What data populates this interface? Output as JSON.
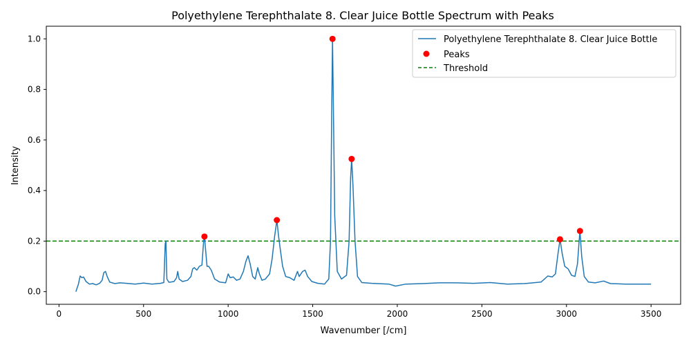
{
  "chart_data": {
    "type": "line",
    "title": "Polyethylene Terephthalate 8. Clear Juice Bottle Spectrum with Peaks",
    "xlabel": "Wavenumber [/cm]",
    "ylabel": "Intensity",
    "xlim": [
      -75,
      3675
    ],
    "ylim": [
      -0.05,
      1.05
    ],
    "xticks": [
      0,
      500,
      1000,
      1500,
      2000,
      2500,
      3000,
      3500
    ],
    "yticks": [
      0.0,
      0.2,
      0.4,
      0.6,
      0.8,
      1.0
    ],
    "xtick_labels": [
      "0",
      "500",
      "1000",
      "1500",
      "2000",
      "2500",
      "3000",
      "3500"
    ],
    "ytick_labels": [
      "0.0",
      "0.2",
      "0.4",
      "0.6",
      "0.8",
      "1.0"
    ],
    "grid": false,
    "legend_position": "top-right",
    "series": [
      {
        "name": "Polyethylene Terephthalate 8. Clear Juice Bottle",
        "color": "#1f77b4",
        "style": "solid",
        "points": [
          [
            100,
            0.0
          ],
          [
            115,
            0.03
          ],
          [
            125,
            0.062
          ],
          [
            135,
            0.055
          ],
          [
            145,
            0.058
          ],
          [
            160,
            0.04
          ],
          [
            180,
            0.03
          ],
          [
            200,
            0.032
          ],
          [
            220,
            0.027
          ],
          [
            240,
            0.033
          ],
          [
            255,
            0.045
          ],
          [
            265,
            0.075
          ],
          [
            275,
            0.08
          ],
          [
            285,
            0.06
          ],
          [
            300,
            0.038
          ],
          [
            330,
            0.032
          ],
          [
            360,
            0.035
          ],
          [
            400,
            0.033
          ],
          [
            450,
            0.03
          ],
          [
            500,
            0.034
          ],
          [
            550,
            0.03
          ],
          [
            600,
            0.033
          ],
          [
            620,
            0.036
          ],
          [
            628,
            0.19
          ],
          [
            632,
            0.2
          ],
          [
            638,
            0.05
          ],
          [
            650,
            0.037
          ],
          [
            680,
            0.04
          ],
          [
            695,
            0.055
          ],
          [
            702,
            0.08
          ],
          [
            710,
            0.05
          ],
          [
            730,
            0.04
          ],
          [
            760,
            0.045
          ],
          [
            780,
            0.06
          ],
          [
            790,
            0.09
          ],
          [
            800,
            0.095
          ],
          [
            815,
            0.085
          ],
          [
            830,
            0.1
          ],
          [
            845,
            0.105
          ],
          [
            855,
            0.2
          ],
          [
            860,
            0.218
          ],
          [
            866,
            0.17
          ],
          [
            875,
            0.1
          ],
          [
            885,
            0.1
          ],
          [
            900,
            0.085
          ],
          [
            920,
            0.05
          ],
          [
            950,
            0.038
          ],
          [
            985,
            0.035
          ],
          [
            1000,
            0.07
          ],
          [
            1012,
            0.055
          ],
          [
            1030,
            0.058
          ],
          [
            1050,
            0.045
          ],
          [
            1070,
            0.05
          ],
          [
            1090,
            0.08
          ],
          [
            1105,
            0.12
          ],
          [
            1118,
            0.142
          ],
          [
            1130,
            0.11
          ],
          [
            1145,
            0.06
          ],
          [
            1160,
            0.05
          ],
          [
            1175,
            0.095
          ],
          [
            1185,
            0.07
          ],
          [
            1200,
            0.045
          ],
          [
            1220,
            0.05
          ],
          [
            1245,
            0.07
          ],
          [
            1260,
            0.13
          ],
          [
            1275,
            0.22
          ],
          [
            1288,
            0.283
          ],
          [
            1298,
            0.22
          ],
          [
            1310,
            0.16
          ],
          [
            1322,
            0.1
          ],
          [
            1340,
            0.06
          ],
          [
            1365,
            0.055
          ],
          [
            1390,
            0.045
          ],
          [
            1410,
            0.08
          ],
          [
            1420,
            0.06
          ],
          [
            1440,
            0.08
          ],
          [
            1455,
            0.085
          ],
          [
            1470,
            0.06
          ],
          [
            1495,
            0.04
          ],
          [
            1530,
            0.033
          ],
          [
            1570,
            0.03
          ],
          [
            1595,
            0.05
          ],
          [
            1605,
            0.2
          ],
          [
            1612,
            0.7
          ],
          [
            1617,
            1.0
          ],
          [
            1622,
            0.75
          ],
          [
            1630,
            0.3
          ],
          [
            1645,
            0.08
          ],
          [
            1670,
            0.05
          ],
          [
            1700,
            0.065
          ],
          [
            1715,
            0.2
          ],
          [
            1724,
            0.45
          ],
          [
            1730,
            0.525
          ],
          [
            1738,
            0.42
          ],
          [
            1750,
            0.2
          ],
          [
            1765,
            0.06
          ],
          [
            1790,
            0.036
          ],
          [
            1850,
            0.033
          ],
          [
            1950,
            0.03
          ],
          [
            1990,
            0.022
          ],
          [
            2050,
            0.03
          ],
          [
            2150,
            0.032
          ],
          [
            2250,
            0.035
          ],
          [
            2350,
            0.035
          ],
          [
            2450,
            0.033
          ],
          [
            2550,
            0.036
          ],
          [
            2650,
            0.03
          ],
          [
            2750,
            0.032
          ],
          [
            2850,
            0.038
          ],
          [
            2890,
            0.062
          ],
          [
            2915,
            0.058
          ],
          [
            2935,
            0.07
          ],
          [
            2950,
            0.15
          ],
          [
            2962,
            0.207
          ],
          [
            2975,
            0.15
          ],
          [
            2990,
            0.1
          ],
          [
            3010,
            0.09
          ],
          [
            3030,
            0.065
          ],
          [
            3050,
            0.06
          ],
          [
            3065,
            0.11
          ],
          [
            3075,
            0.2
          ],
          [
            3080,
            0.24
          ],
          [
            3090,
            0.14
          ],
          [
            3105,
            0.06
          ],
          [
            3130,
            0.038
          ],
          [
            3170,
            0.035
          ],
          [
            3220,
            0.042
          ],
          [
            3260,
            0.032
          ],
          [
            3350,
            0.03
          ],
          [
            3420,
            0.03
          ],
          [
            3500,
            0.03
          ]
        ]
      },
      {
        "name": "Peaks",
        "color": "#ff0000",
        "style": "markers",
        "points": [
          [
            860,
            0.218
          ],
          [
            1288,
            0.283
          ],
          [
            1617,
            1.0
          ],
          [
            1730,
            0.525
          ],
          [
            2962,
            0.207
          ],
          [
            3080,
            0.24
          ]
        ]
      },
      {
        "name": "Threshold",
        "color": "#008000",
        "style": "dashed",
        "y": 0.2
      }
    ]
  }
}
